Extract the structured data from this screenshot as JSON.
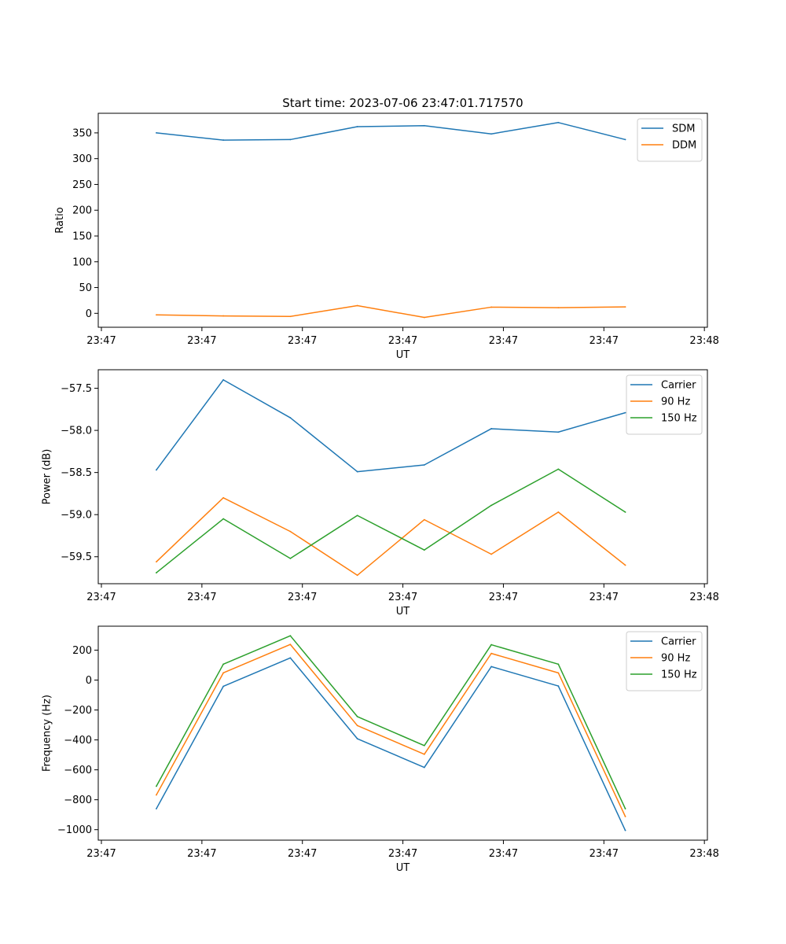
{
  "figure_title": "Start time: 2023-07-06 23:47:01.717570",
  "colors": {
    "blue": "#1f77b4",
    "orange": "#ff7f0e",
    "green": "#2ca02c"
  },
  "chart_data": [
    {
      "type": "line",
      "title": "Start time: 2023-07-06 23:47:01.717570",
      "xlabel": "UT",
      "ylabel": "Ratio",
      "x": [
        1,
        2,
        3,
        4,
        5,
        6,
        7,
        8
      ],
      "xlim": [
        0.133,
        9.225
      ],
      "x_ticks": [
        0.18,
        1.68,
        3.18,
        4.68,
        6.18,
        7.68,
        9.18
      ],
      "x_tick_labels": [
        "23:47",
        "23:47",
        "23:47",
        "23:47",
        "23:47",
        "23:47",
        "23:48"
      ],
      "ylim": [
        -27,
        388
      ],
      "y_ticks": [
        0,
        50,
        100,
        150,
        200,
        250,
        300,
        350
      ],
      "y_tick_labels": [
        "0",
        "50",
        "100",
        "150",
        "200",
        "250",
        "300",
        "350"
      ],
      "legend_position": "top-right",
      "series": [
        {
          "name": "SDM",
          "color": "#1f77b4",
          "values": [
            350,
            336,
            337,
            362,
            364,
            348,
            370,
            337
          ]
        },
        {
          "name": "DDM",
          "color": "#ff7f0e",
          "values": [
            -3,
            -5,
            -6,
            15,
            -8,
            12,
            11,
            12.5
          ]
        }
      ]
    },
    {
      "type": "line",
      "title": "",
      "xlabel": "UT",
      "ylabel": "Power (dB)",
      "x": [
        1,
        2,
        3,
        4,
        5,
        6,
        7,
        8
      ],
      "xlim": [
        0.133,
        9.225
      ],
      "x_ticks": [
        0.18,
        1.68,
        3.18,
        4.68,
        6.18,
        7.68,
        9.18
      ],
      "x_tick_labels": [
        "23:47",
        "23:47",
        "23:47",
        "23:47",
        "23:47",
        "23:47",
        "23:48"
      ],
      "ylim": [
        -59.82,
        -57.28
      ],
      "y_ticks": [
        -59.5,
        -59.0,
        -58.5,
        -58.0,
        -57.5
      ],
      "y_tick_labels": [
        "−59.5",
        "−59.0",
        "−58.5",
        "−58.0",
        "−57.5"
      ],
      "legend_position": "top-right",
      "series": [
        {
          "name": "Carrier",
          "color": "#1f77b4",
          "values": [
            -58.47,
            -57.4,
            -57.85,
            -58.49,
            -58.41,
            -57.98,
            -58.02,
            -57.79
          ]
        },
        {
          "name": "90 Hz",
          "color": "#ff7f0e",
          "values": [
            -59.56,
            -58.8,
            -59.2,
            -59.72,
            -59.06,
            -59.47,
            -58.97,
            -59.6
          ]
        },
        {
          "name": "150 Hz",
          "color": "#2ca02c",
          "values": [
            -59.69,
            -59.05,
            -59.52,
            -59.01,
            -59.42,
            -58.89,
            -58.46,
            -58.97
          ]
        }
      ]
    },
    {
      "type": "line",
      "title": "",
      "xlabel": "UT",
      "ylabel": "Frequency (Hz)",
      "x": [
        1,
        2,
        3,
        4,
        5,
        6,
        7,
        8
      ],
      "xlim": [
        0.133,
        9.225
      ],
      "x_ticks": [
        0.18,
        1.68,
        3.18,
        4.68,
        6.18,
        7.68,
        9.18
      ],
      "x_tick_labels": [
        "23:47",
        "23:47",
        "23:47",
        "23:47",
        "23:47",
        "23:47",
        "23:48"
      ],
      "ylim": [
        -1070,
        360
      ],
      "y_ticks": [
        -1000,
        -800,
        -600,
        -400,
        -200,
        0,
        200
      ],
      "y_tick_labels": [
        "−1000",
        "−800",
        "−600",
        "−400",
        "−200",
        "0",
        "200"
      ],
      "legend_position": "top-right",
      "series": [
        {
          "name": "Carrier",
          "color": "#1f77b4",
          "values": [
            -860,
            -42,
            148,
            -392,
            -584,
            90,
            -40,
            -1005
          ]
        },
        {
          "name": "90 Hz",
          "color": "#ff7f0e",
          "values": [
            -768,
            48,
            238,
            -304,
            -496,
            178,
            48,
            -912
          ]
        },
        {
          "name": "150 Hz",
          "color": "#2ca02c",
          "values": [
            -710,
            106,
            296,
            -244,
            -438,
            236,
            106,
            -860
          ]
        }
      ]
    }
  ]
}
